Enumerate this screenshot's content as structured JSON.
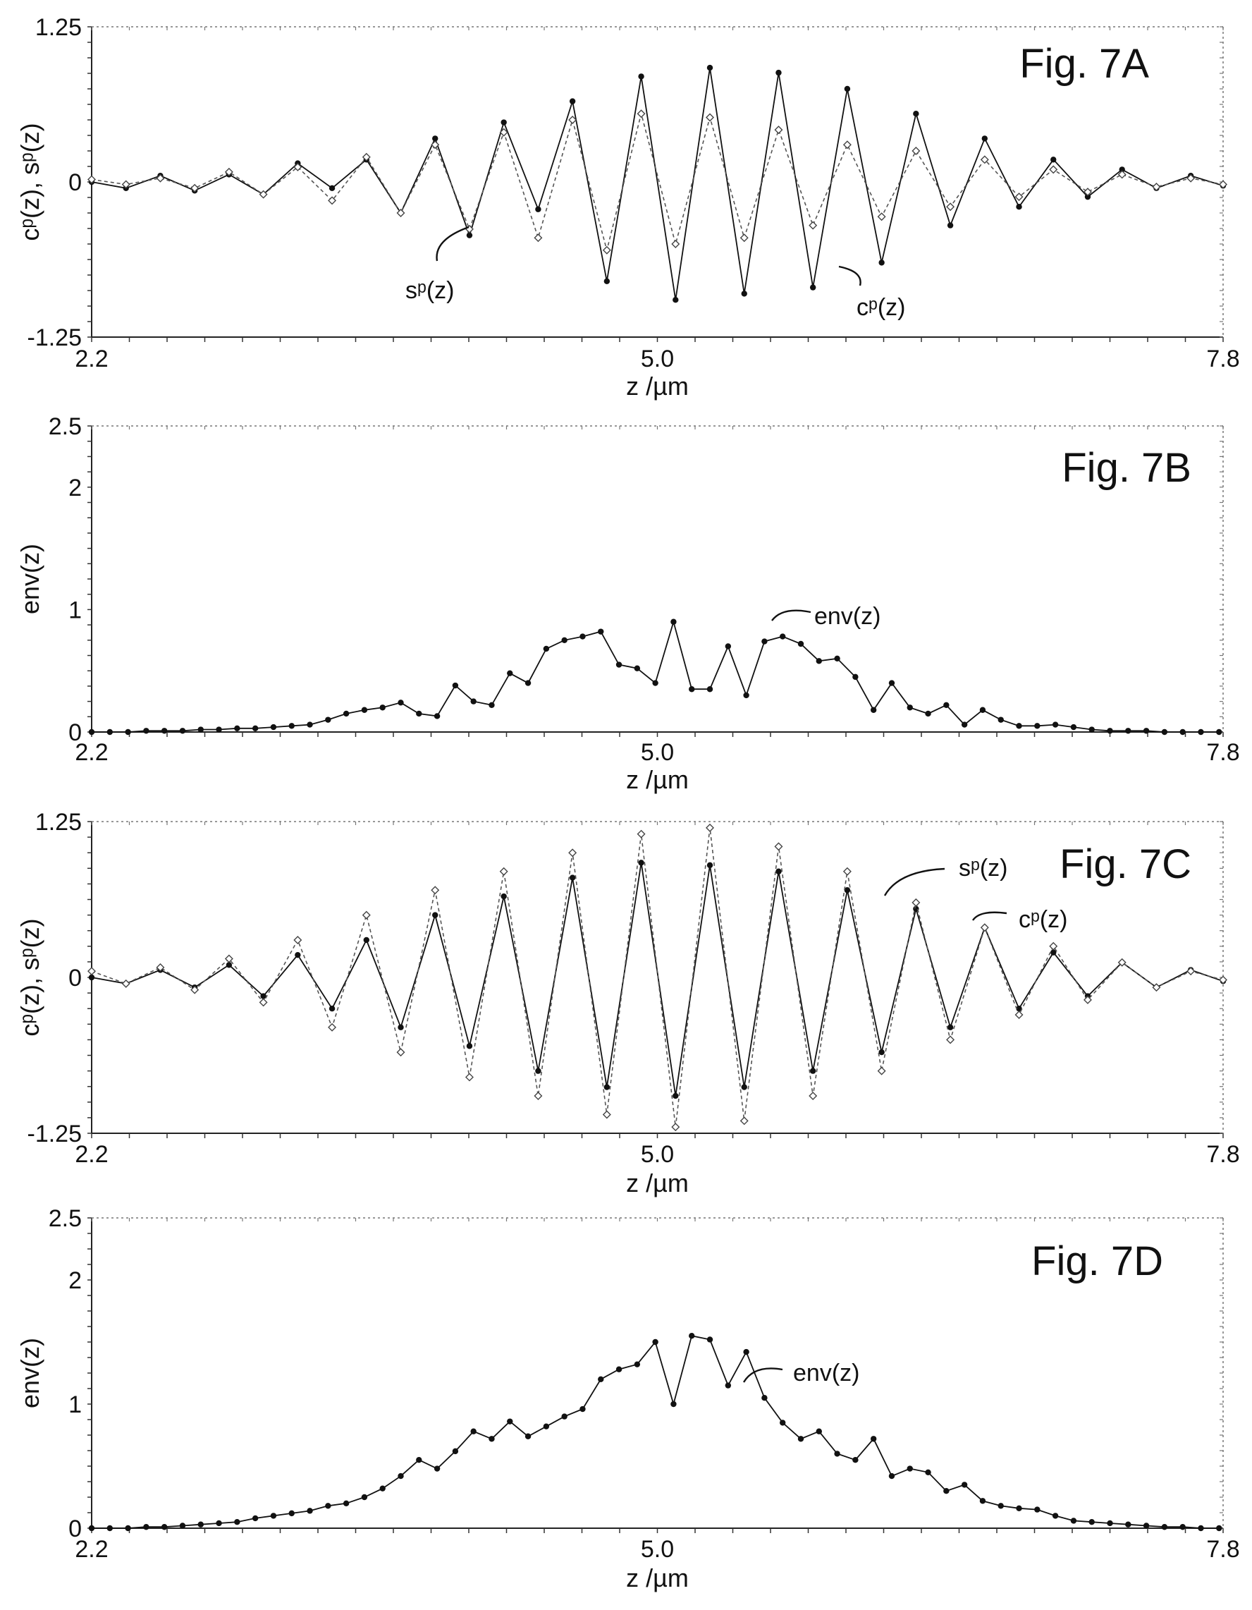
{
  "chart_data": [
    {
      "type": "line",
      "figure_label": "Fig. 7A",
      "xlabel": "z /µm",
      "ylabel": "c^p(z), s^p(z)",
      "ylabel_display": "cᵖ(z), sᵖ(z)",
      "xlim": [
        2.2,
        7.8
      ],
      "ylim": [
        -1.25,
        1.25
      ],
      "xticks": [
        "2.2",
        "5.0",
        "7.8"
      ],
      "yticks": [
        "1.25",
        "0",
        "-1.25"
      ],
      "x": [
        2.2,
        2.37,
        2.54,
        2.71,
        2.88,
        3.05,
        3.22,
        3.39,
        3.56,
        3.73,
        3.9,
        4.07,
        4.24,
        4.41,
        4.58,
        4.75,
        4.92,
        5.09,
        5.26,
        5.43,
        5.6,
        5.77,
        5.94,
        6.11,
        6.28,
        6.45,
        6.62,
        6.79,
        6.96,
        7.13,
        7.3,
        7.47,
        7.64,
        7.8
      ],
      "series": [
        {
          "name": "c^p(z)",
          "display_name": "cᵖ(z)",
          "marker": "filled-circle",
          "dash": "solid",
          "values": [
            0.0,
            -0.05,
            0.05,
            -0.07,
            0.06,
            -0.1,
            0.15,
            -0.05,
            0.18,
            -0.25,
            0.35,
            -0.43,
            0.48,
            -0.22,
            0.65,
            -0.8,
            0.85,
            -0.95,
            0.92,
            -0.9,
            0.88,
            -0.85,
            0.75,
            -0.65,
            0.55,
            -0.35,
            0.35,
            -0.2,
            0.18,
            -0.12,
            0.1,
            -0.05,
            0.05,
            -0.03
          ]
        },
        {
          "name": "s^p(z)",
          "display_name": "sᵖ(z)",
          "marker": "open-diamond",
          "dash": "dashed",
          "values": [
            0.02,
            -0.02,
            0.03,
            -0.05,
            0.08,
            -0.1,
            0.12,
            -0.15,
            0.2,
            -0.25,
            0.3,
            -0.38,
            0.4,
            -0.45,
            0.5,
            -0.55,
            0.55,
            -0.5,
            0.52,
            -0.45,
            0.42,
            -0.35,
            0.3,
            -0.28,
            0.25,
            -0.2,
            0.18,
            -0.12,
            0.1,
            -0.08,
            0.06,
            -0.04,
            0.03,
            -0.02
          ]
        }
      ],
      "annotations": [
        {
          "text": "s^p(z)",
          "display": "sᵖ(z)"
        },
        {
          "text": "c^p(z)",
          "display": "cᵖ(z)"
        }
      ]
    },
    {
      "type": "line",
      "figure_label": "Fig. 7B",
      "xlabel": "z /µm",
      "ylabel": "env(z)",
      "xlim": [
        2.2,
        7.8
      ],
      "ylim": [
        0,
        2.5
      ],
      "xticks": [
        "2.2",
        "5.0",
        "7.8"
      ],
      "yticks": [
        "2.5",
        "2",
        "1",
        "0"
      ],
      "x": [
        2.2,
        2.29,
        2.38,
        2.47,
        2.56,
        2.65,
        2.74,
        2.83,
        2.92,
        3.01,
        3.1,
        3.19,
        3.28,
        3.37,
        3.46,
        3.55,
        3.64,
        3.73,
        3.82,
        3.91,
        4.0,
        4.09,
        4.18,
        4.27,
        4.36,
        4.45,
        4.54,
        4.63,
        4.72,
        4.81,
        4.9,
        4.99,
        5.08,
        5.17,
        5.26,
        5.35,
        5.44,
        5.53,
        5.62,
        5.71,
        5.8,
        5.89,
        5.98,
        6.07,
        6.16,
        6.25,
        6.34,
        6.43,
        6.52,
        6.61,
        6.7,
        6.79,
        6.88,
        6.97,
        7.06,
        7.15,
        7.24,
        7.33,
        7.42,
        7.51,
        7.6,
        7.69,
        7.78
      ],
      "series": [
        {
          "name": "env(z)",
          "marker": "filled-circle",
          "dash": "solid",
          "values": [
            0.0,
            0.0,
            0.0,
            0.01,
            0.01,
            0.01,
            0.02,
            0.02,
            0.03,
            0.03,
            0.04,
            0.05,
            0.06,
            0.1,
            0.15,
            0.18,
            0.2,
            0.24,
            0.15,
            0.13,
            0.38,
            0.25,
            0.22,
            0.48,
            0.4,
            0.68,
            0.75,
            0.78,
            0.82,
            0.55,
            0.52,
            0.4,
            0.9,
            0.35,
            0.35,
            0.7,
            0.3,
            0.74,
            0.78,
            0.72,
            0.58,
            0.6,
            0.45,
            0.18,
            0.4,
            0.2,
            0.15,
            0.22,
            0.06,
            0.18,
            0.1,
            0.05,
            0.05,
            0.06,
            0.04,
            0.02,
            0.01,
            0.01,
            0.01,
            0.0,
            0.0,
            0.0,
            0.0
          ]
        }
      ],
      "annotations": [
        {
          "text": "env(z)"
        }
      ]
    },
    {
      "type": "line",
      "figure_label": "Fig. 7C",
      "xlabel": "z /µm",
      "ylabel": "c^p(z), s^p(z)",
      "ylabel_display": "cᵖ(z), sᵖ(z)",
      "xlim": [
        2.2,
        7.8
      ],
      "ylim": [
        -1.25,
        1.25
      ],
      "xticks": [
        "2.2",
        "5.0",
        "7.8"
      ],
      "yticks": [
        "1.25",
        "0",
        "-1.25"
      ],
      "x": [
        2.2,
        2.37,
        2.54,
        2.71,
        2.88,
        3.05,
        3.22,
        3.39,
        3.56,
        3.73,
        3.9,
        4.07,
        4.24,
        4.41,
        4.58,
        4.75,
        4.92,
        5.09,
        5.26,
        5.43,
        5.6,
        5.77,
        5.94,
        6.11,
        6.28,
        6.45,
        6.62,
        6.79,
        6.96,
        7.13,
        7.3,
        7.47,
        7.64,
        7.8
      ],
      "series": [
        {
          "name": "c^p(z)",
          "display_name": "cᵖ(z)",
          "marker": "filled-circle",
          "dash": "solid",
          "values": [
            0.0,
            -0.05,
            0.06,
            -0.08,
            0.1,
            -0.15,
            0.18,
            -0.25,
            0.3,
            -0.4,
            0.5,
            -0.55,
            0.65,
            -0.75,
            0.8,
            -0.88,
            0.92,
            -0.95,
            0.9,
            -0.88,
            0.85,
            -0.75,
            0.7,
            -0.6,
            0.55,
            -0.4,
            0.4,
            -0.25,
            0.2,
            -0.15,
            0.12,
            -0.08,
            0.06,
            -0.03
          ]
        },
        {
          "name": "s^p(z)",
          "display_name": "sᵖ(z)",
          "marker": "open-diamond",
          "dash": "dashed",
          "values": [
            0.05,
            -0.05,
            0.08,
            -0.1,
            0.15,
            -0.2,
            0.3,
            -0.4,
            0.5,
            -0.6,
            0.7,
            -0.8,
            0.85,
            -0.95,
            1.0,
            -1.1,
            1.15,
            -1.2,
            1.2,
            -1.15,
            1.05,
            -0.95,
            0.85,
            -0.75,
            0.6,
            -0.5,
            0.4,
            -0.3,
            0.25,
            -0.18,
            0.12,
            -0.08,
            0.05,
            -0.02
          ]
        }
      ],
      "annotations": [
        {
          "text": "s^p(z)",
          "display": "sᵖ(z)"
        },
        {
          "text": "c^p(z)",
          "display": "cᵖ(z)"
        }
      ]
    },
    {
      "type": "line",
      "figure_label": "Fig. 7D",
      "xlabel": "z /µm",
      "ylabel": "env(z)",
      "xlim": [
        2.2,
        7.8
      ],
      "ylim": [
        0,
        2.5
      ],
      "xticks": [
        "2.2",
        "5.0",
        "7.8"
      ],
      "yticks": [
        "2.5",
        "2",
        "1",
        "0"
      ],
      "x": [
        2.2,
        2.29,
        2.38,
        2.47,
        2.56,
        2.65,
        2.74,
        2.83,
        2.92,
        3.01,
        3.1,
        3.19,
        3.28,
        3.37,
        3.46,
        3.55,
        3.64,
        3.73,
        3.82,
        3.91,
        4.0,
        4.09,
        4.18,
        4.27,
        4.36,
        4.45,
        4.54,
        4.63,
        4.72,
        4.81,
        4.9,
        4.99,
        5.08,
        5.17,
        5.26,
        5.35,
        5.44,
        5.53,
        5.62,
        5.71,
        5.8,
        5.89,
        5.98,
        6.07,
        6.16,
        6.25,
        6.34,
        6.43,
        6.52,
        6.61,
        6.7,
        6.79,
        6.88,
        6.97,
        7.06,
        7.15,
        7.24,
        7.33,
        7.42,
        7.51,
        7.6,
        7.69,
        7.78
      ],
      "series": [
        {
          "name": "env(z)",
          "marker": "filled-circle",
          "dash": "solid",
          "values": [
            0.0,
            0.0,
            0.0,
            0.01,
            0.01,
            0.02,
            0.03,
            0.04,
            0.05,
            0.08,
            0.1,
            0.12,
            0.14,
            0.18,
            0.2,
            0.25,
            0.32,
            0.42,
            0.55,
            0.48,
            0.62,
            0.78,
            0.72,
            0.86,
            0.74,
            0.82,
            0.9,
            0.96,
            1.2,
            1.28,
            1.32,
            1.5,
            1.0,
            1.55,
            1.52,
            1.15,
            1.42,
            1.05,
            0.85,
            0.72,
            0.78,
            0.6,
            0.55,
            0.72,
            0.42,
            0.48,
            0.45,
            0.3,
            0.35,
            0.22,
            0.18,
            0.16,
            0.15,
            0.1,
            0.06,
            0.05,
            0.04,
            0.03,
            0.02,
            0.01,
            0.01,
            0.0,
            0.0
          ]
        }
      ],
      "annotations": [
        {
          "text": "env(z)"
        }
      ]
    }
  ]
}
